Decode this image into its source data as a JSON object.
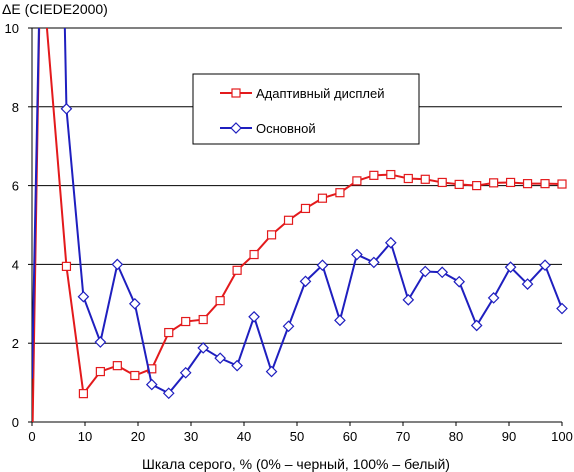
{
  "chart_data": {
    "type": "line",
    "title": "",
    "ylabel": "ΔE (CIEDE2000)",
    "xlabel": "Шкала серого, % (0% – черный, 100% – белый)",
    "xlim": [
      0,
      100
    ],
    "ylim": [
      0,
      10
    ],
    "xticks": [
      0,
      10,
      20,
      30,
      40,
      50,
      60,
      70,
      80,
      90,
      100
    ],
    "yticks": [
      0,
      2,
      4,
      6,
      8,
      10
    ],
    "grid": "horizontal",
    "legend_position": "top-right",
    "series": [
      {
        "name": "Адаптивный дисплей",
        "color": "#e31a1c",
        "marker": "square",
        "points": [
          [
            0,
            -1.0
          ],
          [
            1.6,
            12.0
          ],
          [
            6.5,
            3.95
          ],
          [
            9.7,
            0.72
          ],
          [
            12.9,
            1.28
          ],
          [
            16.1,
            1.43
          ],
          [
            19.4,
            1.18
          ],
          [
            22.6,
            1.35
          ],
          [
            25.8,
            2.27
          ],
          [
            29.0,
            2.55
          ],
          [
            32.3,
            2.6
          ],
          [
            35.5,
            3.08
          ],
          [
            38.7,
            3.85
          ],
          [
            41.9,
            4.25
          ],
          [
            45.2,
            4.75
          ],
          [
            48.4,
            5.12
          ],
          [
            51.6,
            5.42
          ],
          [
            54.8,
            5.68
          ],
          [
            58.1,
            5.82
          ],
          [
            61.3,
            6.12
          ],
          [
            64.5,
            6.26
          ],
          [
            67.7,
            6.28
          ],
          [
            71.0,
            6.18
          ],
          [
            74.2,
            6.16
          ],
          [
            77.4,
            6.08
          ],
          [
            80.6,
            6.03
          ],
          [
            83.9,
            6.0
          ],
          [
            87.1,
            6.07
          ],
          [
            90.3,
            6.08
          ],
          [
            93.5,
            6.05
          ],
          [
            96.8,
            6.05
          ],
          [
            100,
            6.04
          ]
        ],
        "unmarked_points": 2
      },
      {
        "name": "Основной",
        "color": "#1f1fbf",
        "marker": "diamond",
        "points": [
          [
            0,
            1.1
          ],
          [
            1.6,
            12.0
          ],
          [
            5.9,
            12.0
          ],
          [
            6.5,
            7.95
          ],
          [
            9.7,
            3.18
          ],
          [
            12.9,
            2.03
          ],
          [
            16.1,
            4.0
          ],
          [
            19.4,
            3.0
          ],
          [
            22.6,
            0.95
          ],
          [
            25.8,
            0.73
          ],
          [
            29.0,
            1.25
          ],
          [
            32.3,
            1.88
          ],
          [
            35.5,
            1.62
          ],
          [
            38.7,
            1.43
          ],
          [
            41.9,
            2.67
          ],
          [
            45.2,
            1.28
          ],
          [
            48.4,
            2.43
          ],
          [
            51.6,
            3.57
          ],
          [
            54.8,
            3.98
          ],
          [
            58.1,
            2.58
          ],
          [
            61.3,
            4.25
          ],
          [
            64.5,
            4.05
          ],
          [
            67.7,
            4.55
          ],
          [
            71.0,
            3.1
          ],
          [
            74.2,
            3.82
          ],
          [
            77.4,
            3.8
          ],
          [
            80.6,
            3.56
          ],
          [
            83.9,
            2.45
          ],
          [
            87.1,
            3.15
          ],
          [
            90.3,
            3.93
          ],
          [
            93.5,
            3.5
          ],
          [
            96.8,
            3.98
          ],
          [
            100,
            2.88
          ]
        ],
        "unmarked_points": 3
      }
    ]
  }
}
